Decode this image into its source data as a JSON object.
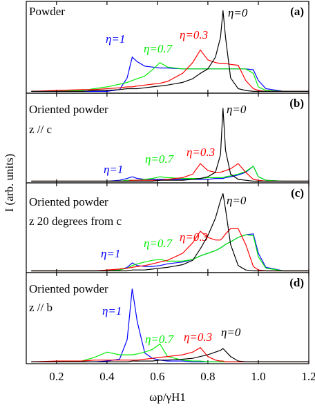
{
  "chart_data": [
    {
      "type": "line",
      "panel_label": "(a)",
      "annotation": [
        "Powder"
      ],
      "x": [
        0.1,
        0.2,
        0.3,
        0.35,
        0.4,
        0.45,
        0.48,
        0.5,
        0.52,
        0.55,
        0.58,
        0.61,
        0.64,
        0.7,
        0.74,
        0.77,
        0.8,
        0.83,
        0.85,
        0.86,
        0.87,
        0.89,
        0.92,
        0.95,
        0.98,
        1.0,
        1.03,
        1.1,
        1.2
      ],
      "xlim": [
        0.08,
        1.2
      ],
      "ylim": [
        -2,
        100
      ],
      "series": [
        {
          "name": "η=1",
          "color": "#0000ff",
          "values": [
            0,
            0,
            0,
            0,
            0,
            2,
            15,
            38,
            33,
            28,
            27,
            26,
            26,
            25,
            25,
            25,
            25,
            25,
            25,
            25,
            25,
            25,
            25,
            25,
            24,
            12,
            3,
            0,
            0
          ]
        },
        {
          "name": "η=0.7",
          "color": "#00ee00",
          "values": [
            0,
            0,
            1,
            3,
            5,
            8,
            10,
            12,
            14,
            17,
            24,
            32,
            27,
            25,
            25,
            25,
            25,
            25,
            25,
            25,
            25,
            25,
            25,
            25,
            20,
            5,
            1,
            0,
            0
          ]
        },
        {
          "name": "η=0.3",
          "color": "#ff0000",
          "values": [
            0,
            1,
            2,
            2,
            3,
            4,
            5,
            5,
            6,
            7,
            8,
            9,
            11,
            20,
            32,
            46,
            35,
            32,
            31,
            31,
            31,
            30,
            29,
            12,
            3,
            1,
            0,
            0,
            0
          ]
        },
        {
          "name": "η=0",
          "color": "#000000",
          "values": [
            0,
            0,
            0,
            1,
            1,
            2,
            3,
            3,
            3,
            4,
            5,
            6,
            7,
            10,
            14,
            20,
            25,
            38,
            60,
            90,
            60,
            15,
            3,
            1,
            0,
            0,
            0,
            0,
            0
          ]
        }
      ]
    },
    {
      "type": "line",
      "panel_label": "(b)",
      "annotation": [
        "Oriented powder",
        "z // c"
      ],
      "x": [
        0.1,
        0.2,
        0.3,
        0.35,
        0.4,
        0.45,
        0.48,
        0.5,
        0.52,
        0.55,
        0.58,
        0.61,
        0.64,
        0.7,
        0.74,
        0.77,
        0.8,
        0.83,
        0.85,
        0.86,
        0.87,
        0.89,
        0.92,
        0.95,
        0.98,
        1.0,
        1.03,
        1.1,
        1.2
      ],
      "xlim": [
        0.08,
        1.2
      ],
      "ylim": [
        -2,
        100
      ],
      "series": [
        {
          "name": "η=1",
          "color": "#0000ff",
          "values": [
            0,
            0,
            0,
            0,
            0,
            1,
            3,
            5,
            3,
            2,
            2,
            2,
            2,
            2,
            2,
            2,
            2,
            3,
            3,
            3,
            4,
            5,
            7,
            10,
            17,
            5,
            1,
            0,
            0
          ]
        },
        {
          "name": "η=0.7",
          "color": "#00ee00",
          "values": [
            0,
            0,
            0,
            0,
            0,
            0,
            1,
            1,
            1,
            2,
            3,
            5,
            4,
            3,
            3,
            3,
            4,
            4,
            4,
            4,
            5,
            6,
            8,
            11,
            17,
            5,
            1,
            0,
            0
          ]
        },
        {
          "name": "η=0.3",
          "color": "#ff0000",
          "values": [
            0,
            0,
            0,
            0,
            0,
            0,
            0,
            1,
            1,
            1,
            1,
            1,
            2,
            4,
            8,
            20,
            12,
            10,
            10,
            11,
            12,
            14,
            20,
            10,
            2,
            1,
            0,
            0,
            0
          ]
        },
        {
          "name": "η=0",
          "color": "#000000",
          "values": [
            0,
            0,
            0,
            0,
            0,
            0,
            0,
            0,
            0,
            0,
            0,
            1,
            1,
            1,
            2,
            3,
            5,
            10,
            30,
            83,
            35,
            8,
            2,
            1,
            0,
            0,
            0,
            0,
            0
          ]
        }
      ]
    },
    {
      "type": "line",
      "panel_label": "(c)",
      "annotation": [
        "Oriented powder",
        "z 20 degrees from c"
      ],
      "x": [
        0.1,
        0.2,
        0.3,
        0.35,
        0.4,
        0.45,
        0.48,
        0.5,
        0.52,
        0.55,
        0.58,
        0.61,
        0.64,
        0.7,
        0.74,
        0.77,
        0.8,
        0.83,
        0.85,
        0.86,
        0.87,
        0.89,
        0.92,
        0.95,
        0.98,
        1.0,
        1.03,
        1.1,
        1.2
      ],
      "xlim": [
        0.08,
        1.2
      ],
      "ylim": [
        -2,
        100
      ],
      "series": [
        {
          "name": "η=1",
          "color": "#0000ff",
          "values": [
            0,
            0,
            0,
            0,
            0,
            1,
            4,
            9,
            6,
            5,
            5,
            6,
            8,
            10,
            13,
            17,
            20,
            23,
            26,
            28,
            30,
            33,
            38,
            41,
            42,
            20,
            4,
            0,
            0
          ]
        },
        {
          "name": "η=0.7",
          "color": "#00ee00",
          "values": [
            0,
            0,
            0,
            0,
            0,
            1,
            3,
            6,
            8,
            10,
            12,
            13,
            11,
            11,
            13,
            17,
            20,
            23,
            26,
            28,
            30,
            33,
            38,
            41,
            40,
            16,
            3,
            0,
            0
          ]
        },
        {
          "name": "η=0.3",
          "color": "#ff0000",
          "values": [
            0,
            0,
            0,
            0,
            1,
            2,
            3,
            4,
            5,
            6,
            8,
            10,
            12,
            20,
            32,
            45,
            38,
            35,
            35,
            38,
            42,
            48,
            48,
            30,
            5,
            1,
            0,
            0,
            0
          ]
        },
        {
          "name": "η=0",
          "color": "#000000",
          "values": [
            0,
            0,
            0,
            0,
            0,
            0,
            0,
            1,
            1,
            1,
            2,
            3,
            4,
            7,
            12,
            25,
            40,
            60,
            80,
            88,
            70,
            30,
            6,
            1,
            0,
            0,
            0,
            0,
            0
          ]
        }
      ]
    },
    {
      "type": "line",
      "panel_label": "(d)",
      "annotation": [
        "Oriented powder",
        "z // b"
      ],
      "x": [
        0.1,
        0.2,
        0.3,
        0.35,
        0.4,
        0.45,
        0.48,
        0.5,
        0.52,
        0.55,
        0.58,
        0.61,
        0.64,
        0.7,
        0.74,
        0.77,
        0.8,
        0.83,
        0.85,
        0.86,
        0.87,
        0.89,
        0.92,
        0.95,
        0.98,
        1.0,
        1.03,
        1.1,
        1.2
      ],
      "xlim": [
        0.08,
        1.2
      ],
      "ylim": [
        -2,
        100
      ],
      "xticks": [
        0.2,
        0.4,
        0.6,
        0.8,
        {
          "value": 1,
          "label": "1.0"
        },
        1.2
      ],
      "xlabel": "ωp/γH1",
      "ylabel": "I  (arb. units)",
      "series": [
        {
          "name": "η=1",
          "color": "#0000ff",
          "values": [
            0,
            0,
            0,
            0,
            1,
            3,
            25,
            82,
            45,
            10,
            4,
            2,
            1,
            1,
            0,
            0,
            0,
            0,
            0,
            0,
            0,
            0,
            0,
            0,
            0,
            0,
            0,
            0,
            0
          ]
        },
        {
          "name": "η=0.7",
          "color": "#00ee00",
          "values": [
            0,
            0,
            1,
            5,
            11,
            8,
            8,
            8,
            9,
            11,
            14,
            20,
            6,
            2,
            1,
            1,
            0,
            0,
            0,
            0,
            0,
            0,
            0,
            0,
            0,
            0,
            0,
            0,
            0
          ]
        },
        {
          "name": "η=0.3",
          "color": "#ff0000",
          "values": [
            0,
            1,
            1,
            2,
            2,
            2,
            2,
            2,
            2,
            3,
            4,
            5,
            6,
            8,
            11,
            16,
            6,
            2,
            1,
            1,
            0,
            0,
            0,
            0,
            0,
            0,
            0,
            0,
            0
          ]
        },
        {
          "name": "η=0",
          "color": "#000000",
          "values": [
            0,
            0,
            0,
            0,
            0,
            0,
            0,
            1,
            1,
            1,
            1,
            2,
            2,
            3,
            4,
            6,
            8,
            11,
            13,
            15,
            12,
            6,
            1,
            0,
            0,
            0,
            0,
            0,
            0
          ]
        }
      ]
    }
  ]
}
